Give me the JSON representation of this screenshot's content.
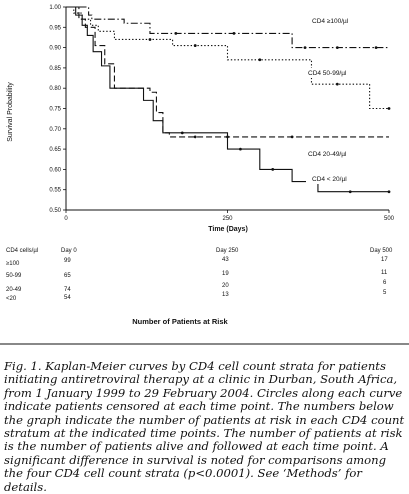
{
  "chart_data": {
    "type": "line",
    "subtype": "kaplan-meier step curves with censoring marks",
    "xlabel": "Time (Days)",
    "ylabel": "Survival Probability",
    "xlim": [
      0,
      500
    ],
    "ylim": [
      0.5,
      1.0
    ],
    "x_ticks": [
      "0",
      "250",
      "500"
    ],
    "y_ticks": [
      "0.50",
      "0.55",
      "0.60",
      "0.65",
      "0.70",
      "0.75",
      "0.80",
      "0.85",
      "0.90",
      "0.95",
      "1.00"
    ],
    "series": [
      {
        "name": "CD4 ≥100/µl",
        "color": "#111111",
        "dash": "dashdot",
        "steps": [
          [
            0,
            1.0
          ],
          [
            35,
            0.98
          ],
          [
            40,
            0.97
          ],
          [
            90,
            0.96
          ],
          [
            130,
            0.935
          ],
          [
            350,
            0.935
          ],
          [
            350,
            0.9
          ],
          [
            500,
            0.9
          ]
        ],
        "censored": [
          [
            170,
            0.935
          ],
          [
            260,
            0.935
          ],
          [
            370,
            0.9
          ],
          [
            420,
            0.9
          ],
          [
            480,
            0.9
          ]
        ]
      },
      {
        "name": "CD4 50-99/µl",
        "color": "#111111",
        "dash": "dotted",
        "steps": [
          [
            0,
            1.0
          ],
          [
            12,
            0.985
          ],
          [
            25,
            0.97
          ],
          [
            38,
            0.955
          ],
          [
            50,
            0.94
          ],
          [
            75,
            0.92
          ],
          [
            165,
            0.92
          ],
          [
            165,
            0.905
          ],
          [
            250,
            0.905
          ],
          [
            250,
            0.87
          ],
          [
            380,
            0.87
          ],
          [
            380,
            0.81
          ],
          [
            470,
            0.81
          ],
          [
            470,
            0.75
          ],
          [
            500,
            0.75
          ]
        ],
        "censored": [
          [
            130,
            0.92
          ],
          [
            200,
            0.905
          ],
          [
            300,
            0.87
          ],
          [
            420,
            0.81
          ],
          [
            500,
            0.75
          ]
        ]
      },
      {
        "name": "CD4 20-49/µl",
        "color": "#111111",
        "dash": "dashed",
        "steps": [
          [
            0,
            1.0
          ],
          [
            20,
            0.97
          ],
          [
            30,
            0.95
          ],
          [
            45,
            0.905
          ],
          [
            60,
            0.86
          ],
          [
            75,
            0.8
          ],
          [
            130,
            0.79
          ],
          [
            140,
            0.74
          ],
          [
            150,
            0.69
          ],
          [
            160,
            0.68
          ],
          [
            500,
            0.68
          ]
        ],
        "censored": [
          [
            200,
            0.68
          ],
          [
            250,
            0.68
          ],
          [
            350,
            0.68
          ]
        ]
      },
      {
        "name": "CD4 < 20/µl",
        "color": "#111111",
        "dash": "solid",
        "steps": [
          [
            0,
            1.0
          ],
          [
            15,
            0.98
          ],
          [
            25,
            0.955
          ],
          [
            33,
            0.93
          ],
          [
            42,
            0.89
          ],
          [
            55,
            0.855
          ],
          [
            68,
            0.8
          ],
          [
            120,
            0.8
          ],
          [
            120,
            0.77
          ],
          [
            135,
            0.72
          ],
          [
            150,
            0.69
          ],
          [
            250,
            0.69
          ],
          [
            250,
            0.65
          ],
          [
            300,
            0.65
          ],
          [
            300,
            0.6
          ],
          [
            350,
            0.6
          ],
          [
            350,
            0.57
          ],
          [
            390,
            0.57
          ],
          [
            390,
            0.545
          ],
          [
            500,
            0.545
          ]
        ],
        "censored": [
          [
            180,
            0.69
          ],
          [
            270,
            0.65
          ],
          [
            320,
            0.6
          ],
          [
            440,
            0.545
          ],
          [
            500,
            0.545
          ]
        ]
      }
    ],
    "annotations": [
      {
        "text": "CD4 ≥100/µl",
        "series": 0
      },
      {
        "text": "CD4 50-99/µl",
        "series": 1
      },
      {
        "text": "CD4 20-49/µl",
        "series": 2
      },
      {
        "text": "CD4 < 20/µl",
        "series": 3
      }
    ]
  },
  "risk_table": {
    "title": "Number of Patients at Risk",
    "headers": [
      "CD4 cells/µl",
      "Day 0",
      "Day 250",
      "Day 500"
    ],
    "rows": [
      {
        "label": "≥100",
        "day0": "99",
        "day250": "43",
        "day500": "17"
      },
      {
        "label": "50-99",
        "day0": "65",
        "day250": "19",
        "day500": "11"
      },
      {
        "label": "20-49",
        "day0": "74",
        "day250": "20",
        "day500": "6"
      },
      {
        "label": "<20",
        "day0": "54",
        "day250": "13",
        "day500": "5"
      }
    ]
  },
  "caption": "Fig. 1. Kaplan-Meier curves by CD4 cell count strata for patients initiating antiretroviral therapy at a clinic in Durban, South Africa, from 1 January 1999 to 29 February 2004. Circles along each curve indicate patients censored at each time point. The numbers below the graph indicate the number of patients at risk in each CD4 count stratum at the indicated time points. The number of patients at risk is the number of patients alive and followed at each time point. A significant difference in survival is noted for comparisons among the four CD4 cell count strata (p<0.0001). See ‘Methods’ for details."
}
